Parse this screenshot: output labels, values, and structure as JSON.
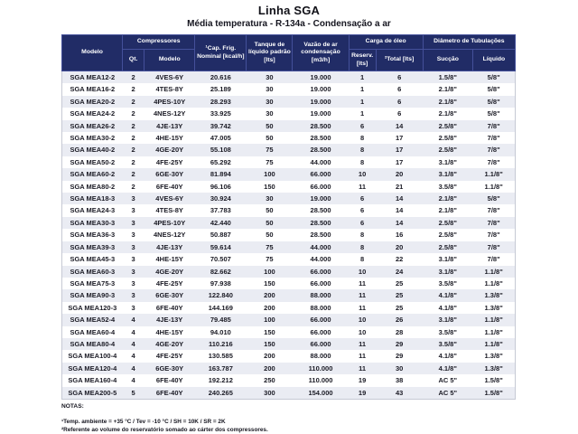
{
  "page": {
    "title": "Linha SGA",
    "subtitle": "Média temperatura - R-134a - Condensação a ar"
  },
  "colors": {
    "header_bg": "#212c66",
    "header_divider": "#44509a",
    "row_alt": "#eaecf3",
    "body_text": "#1a1a24"
  },
  "table": {
    "header": {
      "modelo": "Modelo",
      "compressores": "Compressores",
      "qt": "Qt.",
      "comp_modelo": "Modelo",
      "cap_frig": "¹Cap. Frig. Nominal [kcal/h]",
      "tanque": "Tanque de líquido padrão [lts]",
      "vazao": "Vazão de ar condensação [m3/h]",
      "carga_oleo": "Carga de óleo",
      "reserv": "Reserv. [lts]",
      "total": "²Total [lts]",
      "diametro": "Diâmetro de Tubulações",
      "succao": "Sucção",
      "liquido": "Líquido"
    },
    "rows": [
      [
        "SGA MEA12-2",
        "2",
        "4VES-6Y",
        "20.616",
        "30",
        "19.000",
        "1",
        "6",
        "1.5/8\"",
        "5/8\""
      ],
      [
        "SGA MEA16-2",
        "2",
        "4TES-8Y",
        "25.189",
        "30",
        "19.000",
        "1",
        "6",
        "2.1/8\"",
        "5/8\""
      ],
      [
        "SGA MEA20-2",
        "2",
        "4PES-10Y",
        "28.293",
        "30",
        "19.000",
        "1",
        "6",
        "2.1/8\"",
        "5/8\""
      ],
      [
        "SGA MEA24-2",
        "2",
        "4NES-12Y",
        "33.925",
        "30",
        "19.000",
        "1",
        "6",
        "2.1/8\"",
        "5/8\""
      ],
      [
        "SGA MEA26-2",
        "2",
        "4JE-13Y",
        "39.742",
        "50",
        "28.500",
        "6",
        "14",
        "2.5/8\"",
        "7/8\""
      ],
      [
        "SGA MEA30-2",
        "2",
        "4HE-15Y",
        "47.005",
        "50",
        "28.500",
        "8",
        "17",
        "2.5/8\"",
        "7/8\""
      ],
      [
        "SGA MEA40-2",
        "2",
        "4GE-20Y",
        "55.108",
        "75",
        "28.500",
        "8",
        "17",
        "2.5/8\"",
        "7/8\""
      ],
      [
        "SGA MEA50-2",
        "2",
        "4FE-25Y",
        "65.292",
        "75",
        "44.000",
        "8",
        "17",
        "3.1/8\"",
        "7/8\""
      ],
      [
        "SGA MEA60-2",
        "2",
        "6GE-30Y",
        "81.894",
        "100",
        "66.000",
        "10",
        "20",
        "3.1/8\"",
        "1.1/8\""
      ],
      [
        "SGA MEA80-2",
        "2",
        "6FE-40Y",
        "96.106",
        "150",
        "66.000",
        "11",
        "21",
        "3.5/8\"",
        "1.1/8\""
      ],
      [
        "SGA MEA18-3",
        "3",
        "4VES-6Y",
        "30.924",
        "30",
        "19.000",
        "6",
        "14",
        "2.1/8\"",
        "5/8\""
      ],
      [
        "SGA MEA24-3",
        "3",
        "4TES-8Y",
        "37.783",
        "50",
        "28.500",
        "6",
        "14",
        "2.1/8\"",
        "7/8\""
      ],
      [
        "SGA MEA30-3",
        "3",
        "4PES-10Y",
        "42.440",
        "50",
        "28.500",
        "6",
        "14",
        "2.5/8\"",
        "7/8\""
      ],
      [
        "SGA MEA36-3",
        "3",
        "4NES-12Y",
        "50.887",
        "50",
        "28.500",
        "8",
        "16",
        "2.5/8\"",
        "7/8\""
      ],
      [
        "SGA MEA39-3",
        "3",
        "4JE-13Y",
        "59.614",
        "75",
        "44.000",
        "8",
        "20",
        "2.5/8\"",
        "7/8\""
      ],
      [
        "SGA MEA45-3",
        "3",
        "4HE-15Y",
        "70.507",
        "75",
        "44.000",
        "8",
        "22",
        "3.1/8\"",
        "7/8\""
      ],
      [
        "SGA MEA60-3",
        "3",
        "4GE-20Y",
        "82.662",
        "100",
        "66.000",
        "10",
        "24",
        "3.1/8\"",
        "1.1/8\""
      ],
      [
        "SGA MEA75-3",
        "3",
        "4FE-25Y",
        "97.938",
        "150",
        "66.000",
        "11",
        "25",
        "3.5/8\"",
        "1.1/8\""
      ],
      [
        "SGA MEA90-3",
        "3",
        "6GE-30Y",
        "122.840",
        "200",
        "88.000",
        "11",
        "25",
        "4.1/8\"",
        "1.3/8\""
      ],
      [
        "SGA MEA120-3",
        "3",
        "6FE-40Y",
        "144.169",
        "200",
        "88.000",
        "11",
        "25",
        "4.1/8\"",
        "1.3/8\""
      ],
      [
        "SGA MEA52-4",
        "4",
        "4JE-13Y",
        "79.485",
        "100",
        "66.000",
        "10",
        "26",
        "3.1/8\"",
        "1.1/8\""
      ],
      [
        "SGA MEA60-4",
        "4",
        "4HE-15Y",
        "94.010",
        "150",
        "66.000",
        "10",
        "28",
        "3.5/8\"",
        "1.1/8\""
      ],
      [
        "SGA MEA80-4",
        "4",
        "4GE-20Y",
        "110.216",
        "150",
        "66.000",
        "11",
        "29",
        "3.5/8\"",
        "1.1/8\""
      ],
      [
        "SGA MEA100-4",
        "4",
        "4FE-25Y",
        "130.585",
        "200",
        "88.000",
        "11",
        "29",
        "4.1/8\"",
        "1.3/8\""
      ],
      [
        "SGA MEA120-4",
        "4",
        "6GE-30Y",
        "163.787",
        "200",
        "110.000",
        "11",
        "30",
        "4.1/8\"",
        "1.3/8\""
      ],
      [
        "SGA MEA160-4",
        "4",
        "6FE-40Y",
        "192.212",
        "250",
        "110.000",
        "19",
        "38",
        "AC 5\"",
        "1.5/8\""
      ],
      [
        "SGA MEA200-5",
        "5",
        "6FE-40Y",
        "240.265",
        "300",
        "154.000",
        "19",
        "43",
        "AC 5\"",
        "1.5/8\""
      ]
    ]
  },
  "notes": {
    "label": "NOTAS:",
    "items": [
      "¹Temp. ambiente = +35 °C / Tev = -10 °C / SH = 10K / SR = 2K",
      "²Referente ao volume do reservatório somado ao cárter dos compressores."
    ]
  }
}
